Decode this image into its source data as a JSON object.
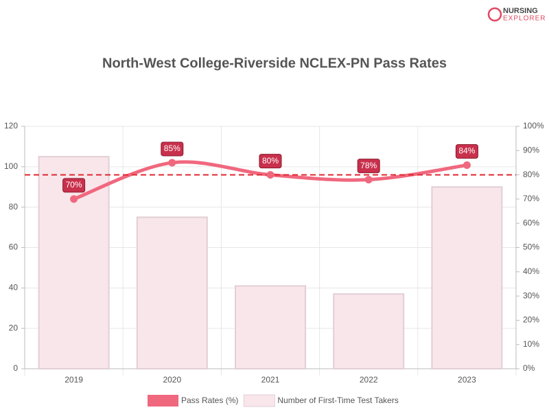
{
  "logo": {
    "line1": "NURSING",
    "line2": "EXPLORER"
  },
  "chart_data": {
    "type": "combo",
    "title": "North-West College-Riverside NCLEX-PN Pass Rates",
    "categories": [
      "2019",
      "2020",
      "2021",
      "2022",
      "2023"
    ],
    "series": [
      {
        "name": "Pass Rates (%)",
        "type": "line",
        "axis": "y2",
        "color": "#f0687e",
        "values": [
          70,
          85,
          80,
          78,
          84
        ],
        "value_labels": [
          "70%",
          "85%",
          "80%",
          "78%",
          "84%"
        ]
      },
      {
        "name": "Number of First-Time Test Takers",
        "type": "bar",
        "color": "#f8e6eb",
        "values": [
          105,
          75,
          41,
          37,
          90
        ]
      }
    ],
    "ylim": [
      0,
      120
    ],
    "yticks": [
      0,
      20,
      40,
      60,
      80,
      100,
      120
    ],
    "y2lim": [
      0,
      100
    ],
    "y2ticks": [
      {
        "value": 0,
        "label": "0%"
      },
      {
        "value": 10,
        "label": "10%"
      },
      {
        "value": 20,
        "label": "20%"
      },
      {
        "value": 30,
        "label": "30%"
      },
      {
        "value": 40,
        "label": "40%"
      },
      {
        "value": 50,
        "label": "50%"
      },
      {
        "value": 60,
        "label": "60%"
      },
      {
        "value": 70,
        "label": "70%"
      },
      {
        "value": 80,
        "label": "80%"
      },
      {
        "value": 90,
        "label": "90%"
      },
      {
        "value": 100,
        "label": "100%"
      }
    ],
    "reference_line": {
      "value": 80,
      "axis": "y2",
      "color": "#e0262e"
    },
    "grid": true,
    "legend": "bottom"
  }
}
